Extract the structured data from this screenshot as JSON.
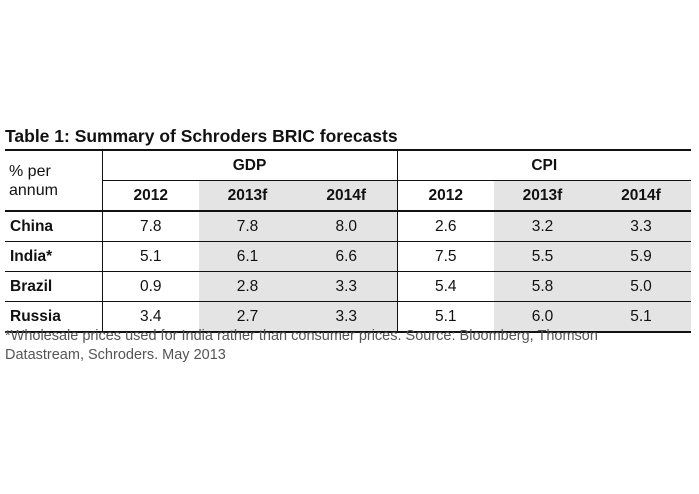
{
  "title": "Table 1: Summary of Schroders BRIC forecasts",
  "table": {
    "row_header": [
      "% per",
      "annum"
    ],
    "groups": [
      "GDP",
      "CPI"
    ],
    "years": [
      "2012",
      "2013f",
      "2014f",
      "2012",
      "2013f",
      "2014f"
    ],
    "rows": [
      {
        "label": "China",
        "values": [
          "7.8",
          "7.8",
          "8.0",
          "2.6",
          "3.2",
          "3.3"
        ]
      },
      {
        "label": "India*",
        "values": [
          "5.1",
          "6.1",
          "6.6",
          "7.5",
          "5.5",
          "5.9"
        ]
      },
      {
        "label": "Brazil",
        "values": [
          "0.9",
          "2.8",
          "3.3",
          "5.4",
          "5.8",
          "5.0"
        ]
      },
      {
        "label": "Russia",
        "values": [
          "3.4",
          "2.7",
          "3.3",
          "5.1",
          "6.0",
          "5.1"
        ]
      }
    ],
    "shaded_color": "#e4e4e4"
  },
  "footnote_line1": "*Wholesale prices used for India rather than consumer prices. Source: Bloomberg, Thomson",
  "footnote_line2": "Datastream, Schroders. May 2013"
}
